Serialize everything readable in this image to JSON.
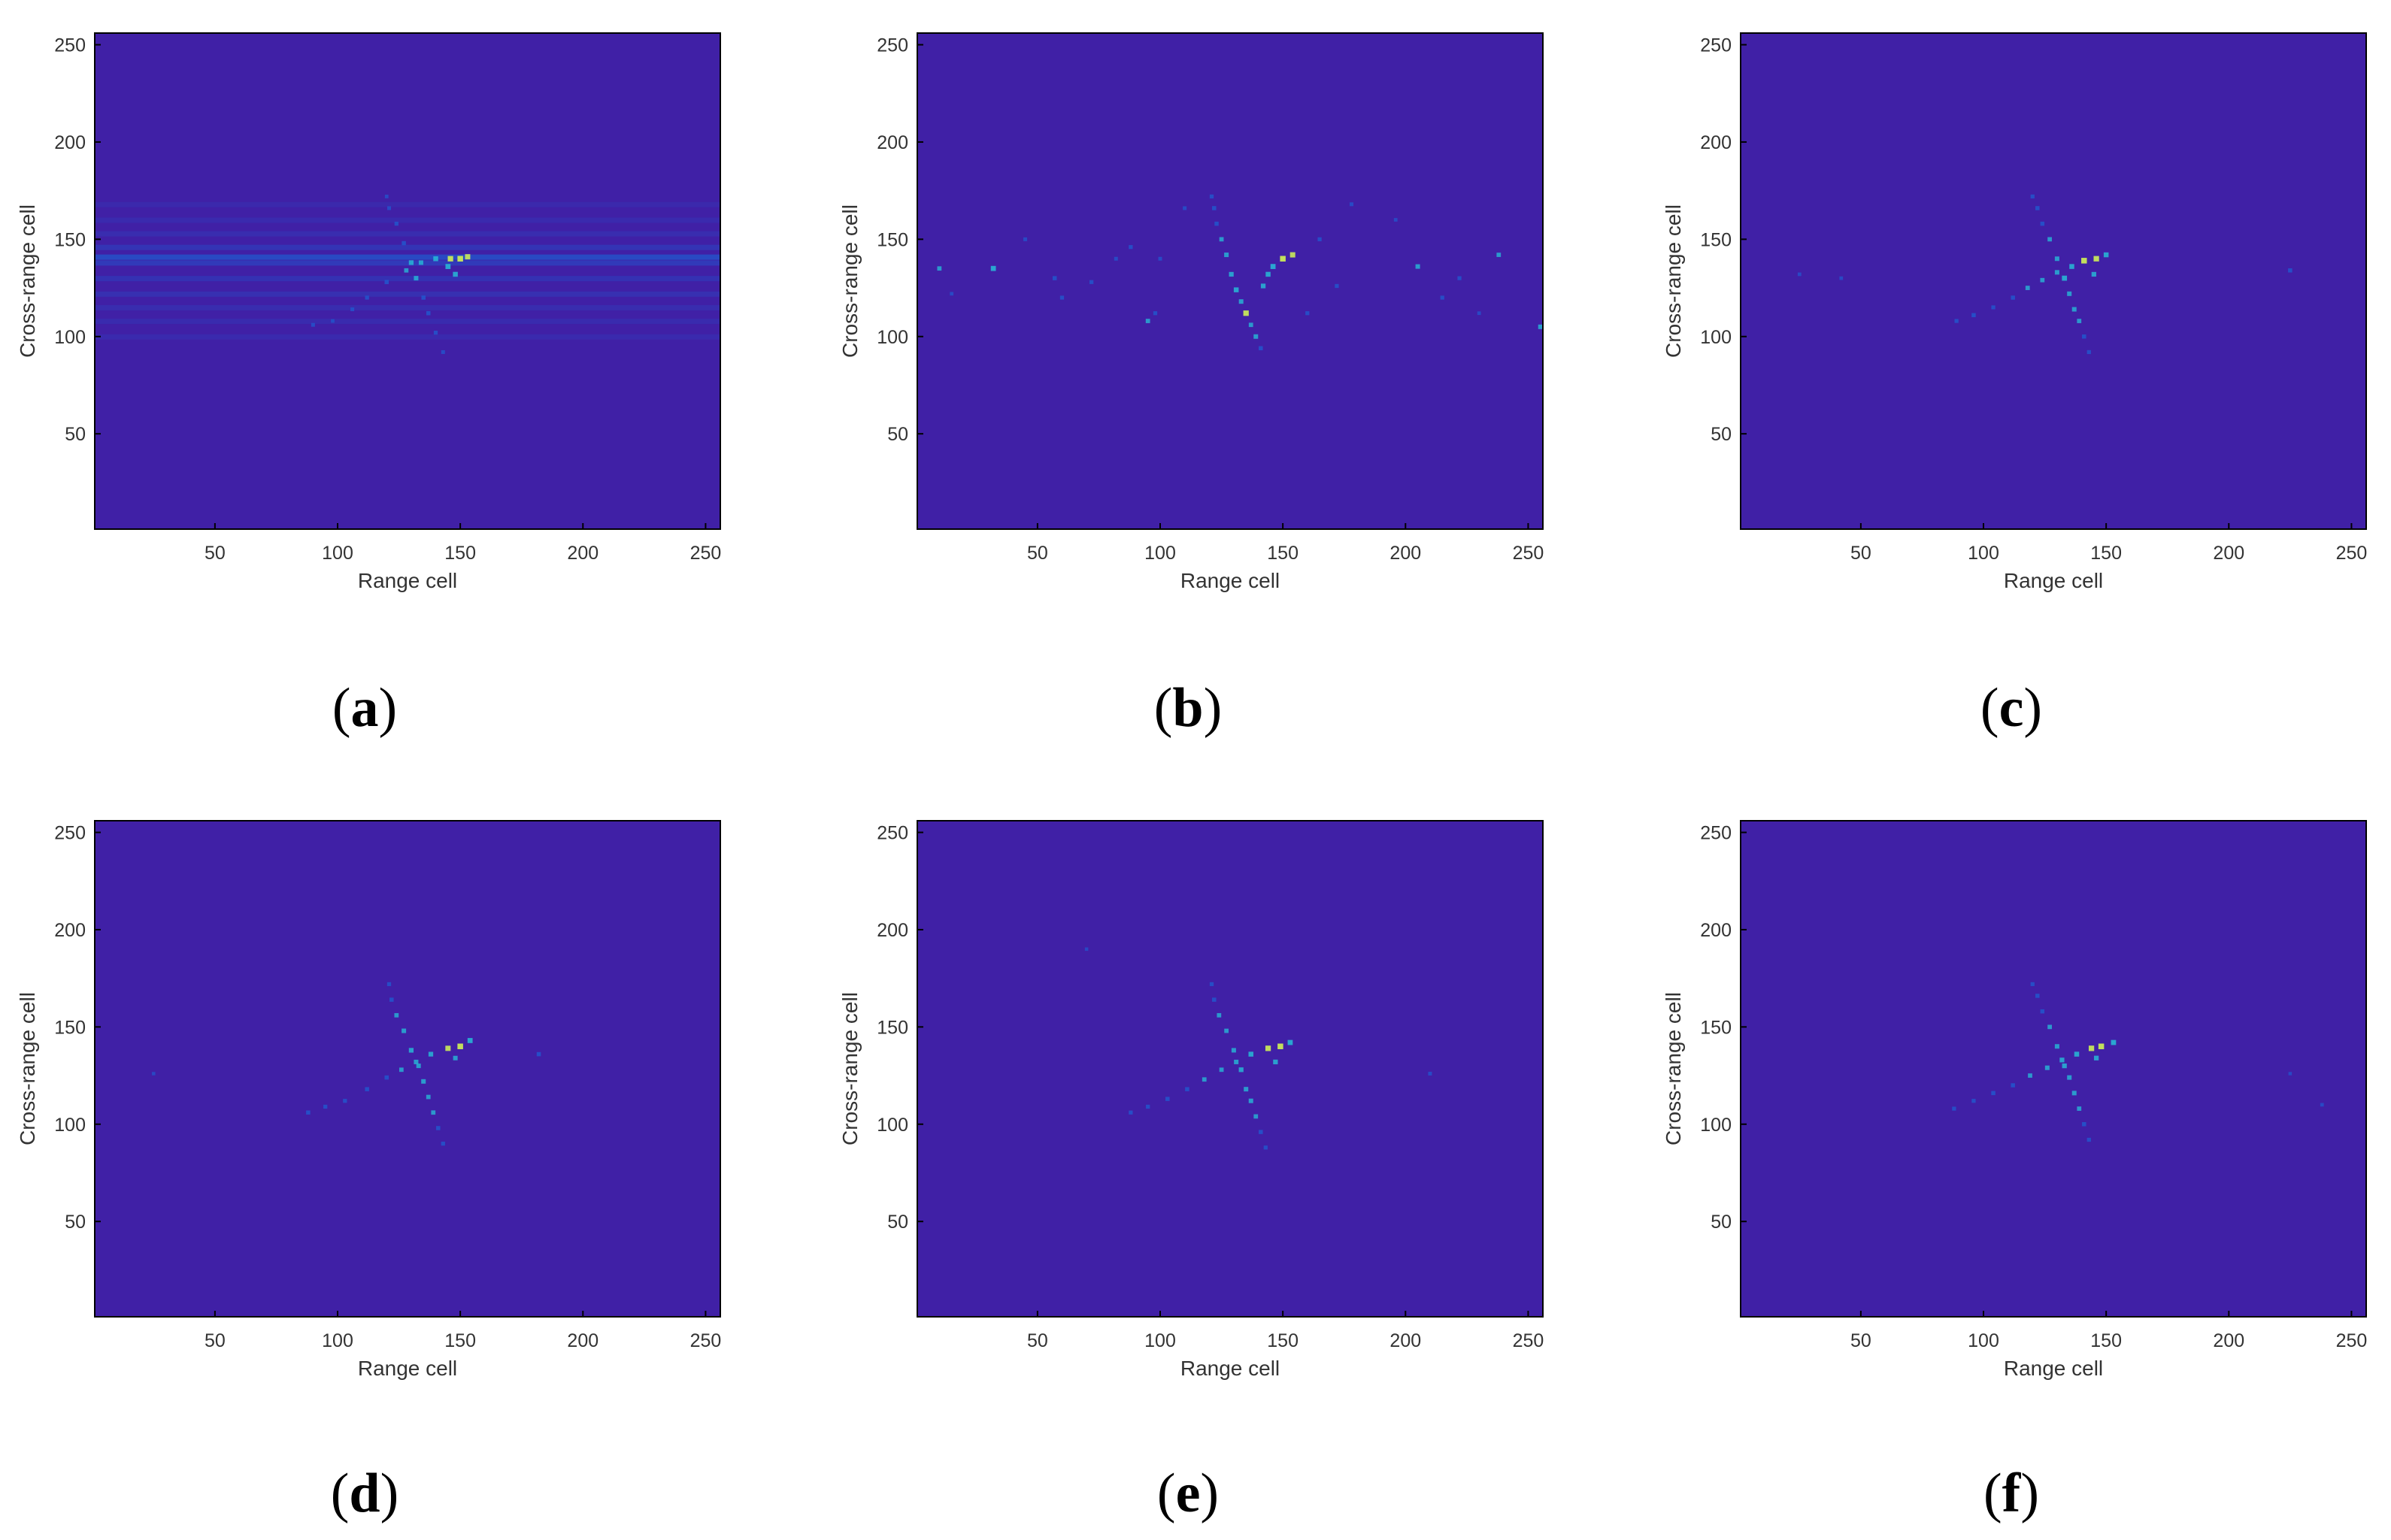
{
  "figure": {
    "colors": {
      "background": "#4020a6",
      "frame": "#000000",
      "hot": "#c8e85a",
      "mid": "#27b7d6",
      "low": "#1f5bd0"
    }
  },
  "chart_data": [
    {
      "panel_label": "a",
      "type": "heatmap",
      "xlabel": "Range cell",
      "ylabel": "Cross-range cell",
      "xticks": [
        50,
        100,
        150,
        200,
        250
      ],
      "yticks": [
        50,
        100,
        150,
        200,
        250
      ],
      "xlim": [
        1,
        256
      ],
      "ylim": [
        256,
        1
      ],
      "colormap": "parula",
      "horizontal_streaks": [
        [
          100,
          0.18
        ],
        [
          108,
          0.2
        ],
        [
          115,
          0.22
        ],
        [
          122,
          0.28
        ],
        [
          130,
          0.3
        ],
        [
          138,
          0.45
        ],
        [
          141,
          0.7
        ],
        [
          146,
          0.35
        ],
        [
          153,
          0.22
        ],
        [
          160,
          0.18
        ],
        [
          168,
          0.15
        ]
      ],
      "points": [
        [
          90,
          106,
          0.4
        ],
        [
          98,
          108,
          0.35
        ],
        [
          106,
          114,
          0.4
        ],
        [
          112,
          120,
          0.45
        ],
        [
          120,
          128,
          0.5
        ],
        [
          128,
          134,
          0.55
        ],
        [
          134,
          138,
          0.6
        ],
        [
          140,
          140,
          0.7
        ],
        [
          146,
          140,
          0.85
        ],
        [
          150,
          140,
          0.9
        ],
        [
          153,
          141,
          0.8
        ],
        [
          143,
          92,
          0.4
        ],
        [
          140,
          102,
          0.45
        ],
        [
          137,
          112,
          0.5
        ],
        [
          135,
          120,
          0.5
        ],
        [
          132,
          130,
          0.6
        ],
        [
          130,
          138,
          0.65
        ],
        [
          127,
          148,
          0.5
        ],
        [
          124,
          158,
          0.45
        ],
        [
          121,
          166,
          0.4
        ],
        [
          120,
          172,
          0.35
        ],
        [
          148,
          132,
          0.7
        ],
        [
          145,
          136,
          0.75
        ]
      ]
    },
    {
      "panel_label": "b",
      "type": "heatmap",
      "xlabel": "Range cell",
      "ylabel": "Cross-range cell",
      "xticks": [
        50,
        100,
        150,
        200,
        250
      ],
      "yticks": [
        50,
        100,
        150,
        200,
        250
      ],
      "xlim": [
        1,
        256
      ],
      "ylim": [
        256,
        1
      ],
      "colormap": "parula",
      "points": [
        [
          141,
          94,
          0.5
        ],
        [
          139,
          100,
          0.6
        ],
        [
          137,
          106,
          0.55
        ],
        [
          135,
          112,
          0.85
        ],
        [
          133,
          118,
          0.6
        ],
        [
          131,
          124,
          0.7
        ],
        [
          129,
          132,
          0.65
        ],
        [
          127,
          142,
          0.6
        ],
        [
          125,
          150,
          0.55
        ],
        [
          123,
          158,
          0.5
        ],
        [
          122,
          166,
          0.5
        ],
        [
          121,
          172,
          0.45
        ],
        [
          146,
          136,
          0.75
        ],
        [
          150,
          140,
          0.9
        ],
        [
          154,
          142,
          0.8
        ],
        [
          142,
          126,
          0.65
        ],
        [
          144,
          132,
          0.7
        ],
        [
          32,
          135,
          0.75
        ],
        [
          10,
          135,
          0.55
        ],
        [
          57,
          130,
          0.5
        ],
        [
          72,
          128,
          0.45
        ],
        [
          95,
          108,
          0.55
        ],
        [
          98,
          112,
          0.45
        ],
        [
          88,
          146,
          0.45
        ],
        [
          165,
          150,
          0.45
        ],
        [
          178,
          168,
          0.4
        ],
        [
          205,
          136,
          0.6
        ],
        [
          215,
          120,
          0.45
        ],
        [
          238,
          142,
          0.55
        ],
        [
          255,
          105,
          0.6
        ],
        [
          222,
          130,
          0.45
        ],
        [
          60,
          120,
          0.45
        ],
        [
          110,
          166,
          0.4
        ],
        [
          172,
          126,
          0.45
        ],
        [
          82,
          140,
          0.4
        ],
        [
          45,
          150,
          0.4
        ],
        [
          196,
          160,
          0.35
        ],
        [
          230,
          112,
          0.35
        ],
        [
          15,
          122,
          0.35
        ],
        [
          100,
          140,
          0.4
        ],
        [
          160,
          112,
          0.45
        ]
      ]
    },
    {
      "panel_label": "c",
      "type": "heatmap",
      "xlabel": "Range cell",
      "ylabel": "Cross-range cell",
      "xticks": [
        50,
        100,
        150,
        200,
        250
      ],
      "yticks": [
        50,
        100,
        150,
        200,
        250
      ],
      "xlim": [
        1,
        256
      ],
      "ylim": [
        256,
        1
      ],
      "colormap": "parula",
      "points": [
        [
          89,
          108,
          0.45
        ],
        [
          96,
          111,
          0.5
        ],
        [
          104,
          115,
          0.45
        ],
        [
          112,
          120,
          0.5
        ],
        [
          118,
          125,
          0.55
        ],
        [
          124,
          129,
          0.55
        ],
        [
          130,
          133,
          0.6
        ],
        [
          136,
          136,
          0.7
        ],
        [
          141,
          139,
          0.9
        ],
        [
          146,
          140,
          0.85
        ],
        [
          150,
          142,
          0.7
        ],
        [
          143,
          92,
          0.45
        ],
        [
          141,
          100,
          0.5
        ],
        [
          139,
          108,
          0.55
        ],
        [
          137,
          114,
          0.6
        ],
        [
          135,
          122,
          0.6
        ],
        [
          133,
          130,
          0.75
        ],
        [
          130,
          140,
          0.6
        ],
        [
          127,
          150,
          0.55
        ],
        [
          124,
          158,
          0.5
        ],
        [
          122,
          166,
          0.5
        ],
        [
          120,
          172,
          0.45
        ],
        [
          145,
          132,
          0.65
        ],
        [
          225,
          134,
          0.5
        ],
        [
          25,
          132,
          0.35
        ],
        [
          42,
          130,
          0.35
        ]
      ]
    },
    {
      "panel_label": "d",
      "type": "heatmap",
      "xlabel": "Range cell",
      "ylabel": "Cross-range cell",
      "xticks": [
        50,
        100,
        150,
        200,
        250
      ],
      "yticks": [
        50,
        100,
        150,
        200,
        250
      ],
      "xlim": [
        1,
        256
      ],
      "ylim": [
        256,
        1
      ],
      "colormap": "parula",
      "points": [
        [
          88,
          106,
          0.5
        ],
        [
          95,
          109,
          0.45
        ],
        [
          103,
          112,
          0.45
        ],
        [
          112,
          118,
          0.5
        ],
        [
          120,
          124,
          0.5
        ],
        [
          126,
          128,
          0.55
        ],
        [
          132,
          132,
          0.6
        ],
        [
          138,
          136,
          0.65
        ],
        [
          145,
          139,
          0.8
        ],
        [
          150,
          140,
          0.9
        ],
        [
          154,
          143,
          0.75
        ],
        [
          143,
          90,
          0.45
        ],
        [
          141,
          98,
          0.5
        ],
        [
          139,
          106,
          0.55
        ],
        [
          137,
          114,
          0.55
        ],
        [
          135,
          122,
          0.6
        ],
        [
          133,
          130,
          0.6
        ],
        [
          130,
          138,
          0.65
        ],
        [
          127,
          148,
          0.6
        ],
        [
          124,
          156,
          0.55
        ],
        [
          122,
          164,
          0.5
        ],
        [
          121,
          172,
          0.45
        ],
        [
          182,
          136,
          0.5
        ],
        [
          148,
          134,
          0.6
        ],
        [
          25,
          126,
          0.3
        ]
      ]
    },
    {
      "panel_label": "e",
      "type": "heatmap",
      "xlabel": "Range cell",
      "ylabel": "Cross-range cell",
      "xticks": [
        50,
        100,
        150,
        200,
        250
      ],
      "yticks": [
        50,
        100,
        150,
        200,
        250
      ],
      "xlim": [
        1,
        256
      ],
      "ylim": [
        256,
        1
      ],
      "colormap": "parula",
      "points": [
        [
          88,
          106,
          0.45
        ],
        [
          95,
          109,
          0.45
        ],
        [
          103,
          113,
          0.5
        ],
        [
          111,
          118,
          0.5
        ],
        [
          118,
          123,
          0.55
        ],
        [
          125,
          128,
          0.55
        ],
        [
          131,
          132,
          0.6
        ],
        [
          137,
          136,
          0.7
        ],
        [
          144,
          139,
          0.85
        ],
        [
          149,
          140,
          0.9
        ],
        [
          153,
          142,
          0.75
        ],
        [
          143,
          88,
          0.45
        ],
        [
          141,
          96,
          0.5
        ],
        [
          139,
          104,
          0.55
        ],
        [
          137,
          112,
          0.6
        ],
        [
          135,
          118,
          0.6
        ],
        [
          133,
          128,
          0.65
        ],
        [
          130,
          138,
          0.6
        ],
        [
          127,
          148,
          0.55
        ],
        [
          124,
          156,
          0.55
        ],
        [
          122,
          164,
          0.5
        ],
        [
          121,
          172,
          0.45
        ],
        [
          147,
          132,
          0.65
        ],
        [
          210,
          126,
          0.4
        ],
        [
          70,
          190,
          0.3
        ]
      ]
    },
    {
      "panel_label": "f",
      "type": "heatmap",
      "xlabel": "Range cell",
      "ylabel": "Cross-range cell",
      "xticks": [
        50,
        100,
        150,
        200,
        250
      ],
      "yticks": [
        50,
        100,
        150,
        200,
        250
      ],
      "xlim": [
        1,
        256
      ],
      "ylim": [
        256,
        1
      ],
      "colormap": "parula",
      "points": [
        [
          88,
          108,
          0.45
        ],
        [
          96,
          112,
          0.45
        ],
        [
          104,
          116,
          0.5
        ],
        [
          112,
          120,
          0.5
        ],
        [
          119,
          125,
          0.55
        ],
        [
          126,
          129,
          0.6
        ],
        [
          132,
          133,
          0.65
        ],
        [
          138,
          136,
          0.7
        ],
        [
          144,
          139,
          0.85
        ],
        [
          148,
          140,
          0.9
        ],
        [
          153,
          142,
          0.75
        ],
        [
          143,
          92,
          0.45
        ],
        [
          141,
          100,
          0.5
        ],
        [
          139,
          108,
          0.55
        ],
        [
          137,
          116,
          0.6
        ],
        [
          135,
          124,
          0.6
        ],
        [
          133,
          130,
          0.65
        ],
        [
          130,
          140,
          0.6
        ],
        [
          127,
          150,
          0.55
        ],
        [
          124,
          158,
          0.5
        ],
        [
          122,
          166,
          0.5
        ],
        [
          120,
          172,
          0.45
        ],
        [
          146,
          134,
          0.65
        ],
        [
          238,
          110,
          0.35
        ],
        [
          225,
          126,
          0.3
        ]
      ]
    }
  ]
}
